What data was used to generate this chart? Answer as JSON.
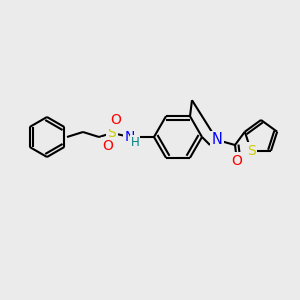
{
  "bg_color": "#ebebeb",
  "line_color": "#000000",
  "atom_colors": {
    "N": "#0000ff",
    "O": "#ff0000",
    "S": "#cccc00",
    "NH": "#008080",
    "H": "#008080"
  },
  "lw": 1.5,
  "fs": 9.0
}
